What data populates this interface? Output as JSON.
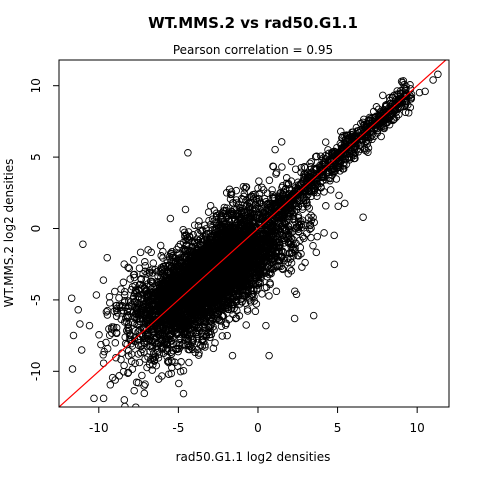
{
  "chart_data": {
    "type": "scatter",
    "title": "WT.MMS.2 vs rad50.G1.1",
    "subtitle": "Pearson correlation =  0.95",
    "xlabel": "rad50.G1.1 log2 densities",
    "ylabel": "WT.MMS.2 log2 densities",
    "xlim": [
      -12.5,
      12
    ],
    "ylim": [
      -12.5,
      11.8
    ],
    "x_ticks": [
      -10,
      -5,
      0,
      5,
      10
    ],
    "y_ticks": [
      -10,
      -5,
      0,
      5,
      10
    ],
    "grid": false,
    "legend": "none",
    "marker": "open-circle",
    "colors": {
      "points": "#000000",
      "fit_line": "#ff0000",
      "frame": "#000000"
    },
    "fit_line": {
      "intercept": 0.0,
      "slope": 1.0
    },
    "point_cloud": {
      "count": 5200,
      "center": [
        -3.0,
        -3.3
      ],
      "spread_along": 3.1,
      "spread_across": 1.15
    },
    "outliers": [
      {
        "x": -11.0,
        "y": -1.1
      },
      {
        "x": -5.5,
        "y": 0.7
      },
      {
        "x": -6.9,
        "y": -1.5
      },
      {
        "x": 3.5,
        "y": -6.1
      },
      {
        "x": 0.5,
        "y": -6.8
      },
      {
        "x": 0.7,
        "y": -8.9
      },
      {
        "x": -9.7,
        "y": -11.9
      },
      {
        "x": -10.3,
        "y": -11.9
      },
      {
        "x": -5.6,
        "y": -10.2
      },
      {
        "x": -4.4,
        "y": 5.3
      },
      {
        "x": 8.6,
        "y": 8.3
      },
      {
        "x": 10.5,
        "y": 9.6
      },
      {
        "x": 11.0,
        "y": 10.4
      },
      {
        "x": 11.3,
        "y": 10.8
      },
      {
        "x": 9.6,
        "y": 9.1
      },
      {
        "x": -8.4,
        "y": -12.0
      },
      {
        "x": -1.6,
        "y": -8.9
      },
      {
        "x": 2.3,
        "y": -6.3
      }
    ]
  }
}
